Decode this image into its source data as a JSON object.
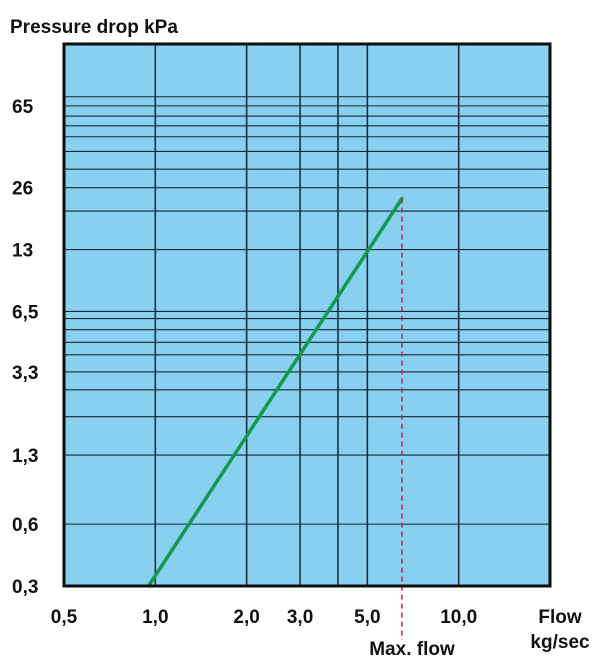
{
  "chart_data": {
    "type": "line",
    "title": "Pressure drop kPa",
    "xlabel_line1": "Flow",
    "xlabel_line2": "kg/sec",
    "x_scale": "log",
    "y_scale": "log",
    "xlim": [
      0.5,
      20
    ],
    "ylim": [
      0.3,
      130
    ],
    "x_ticks": [
      "0,5",
      "1,0",
      "2,0",
      "3,0",
      "5,0",
      "10,0"
    ],
    "x_tick_values": [
      0.5,
      1.0,
      2.0,
      3.0,
      5.0,
      10.0
    ],
    "y_ticks": [
      "65",
      "26",
      "13",
      "6,5",
      "3,3",
      "1,3",
      "0,6",
      "0,3"
    ],
    "y_tick_values": [
      65,
      26,
      13,
      6.5,
      3.3,
      1.3,
      0.6,
      0.3
    ],
    "series": [
      {
        "x": [
          0.95,
          6.5
        ],
        "y": [
          0.3,
          23
        ]
      }
    ],
    "max_flow": {
      "label": "Max. flow",
      "x": 6.5
    },
    "grid": true,
    "colors": {
      "background": "#87d0f0",
      "grid": "#1a2530",
      "line": "#129a4e",
      "marker": "#cc2233"
    }
  }
}
